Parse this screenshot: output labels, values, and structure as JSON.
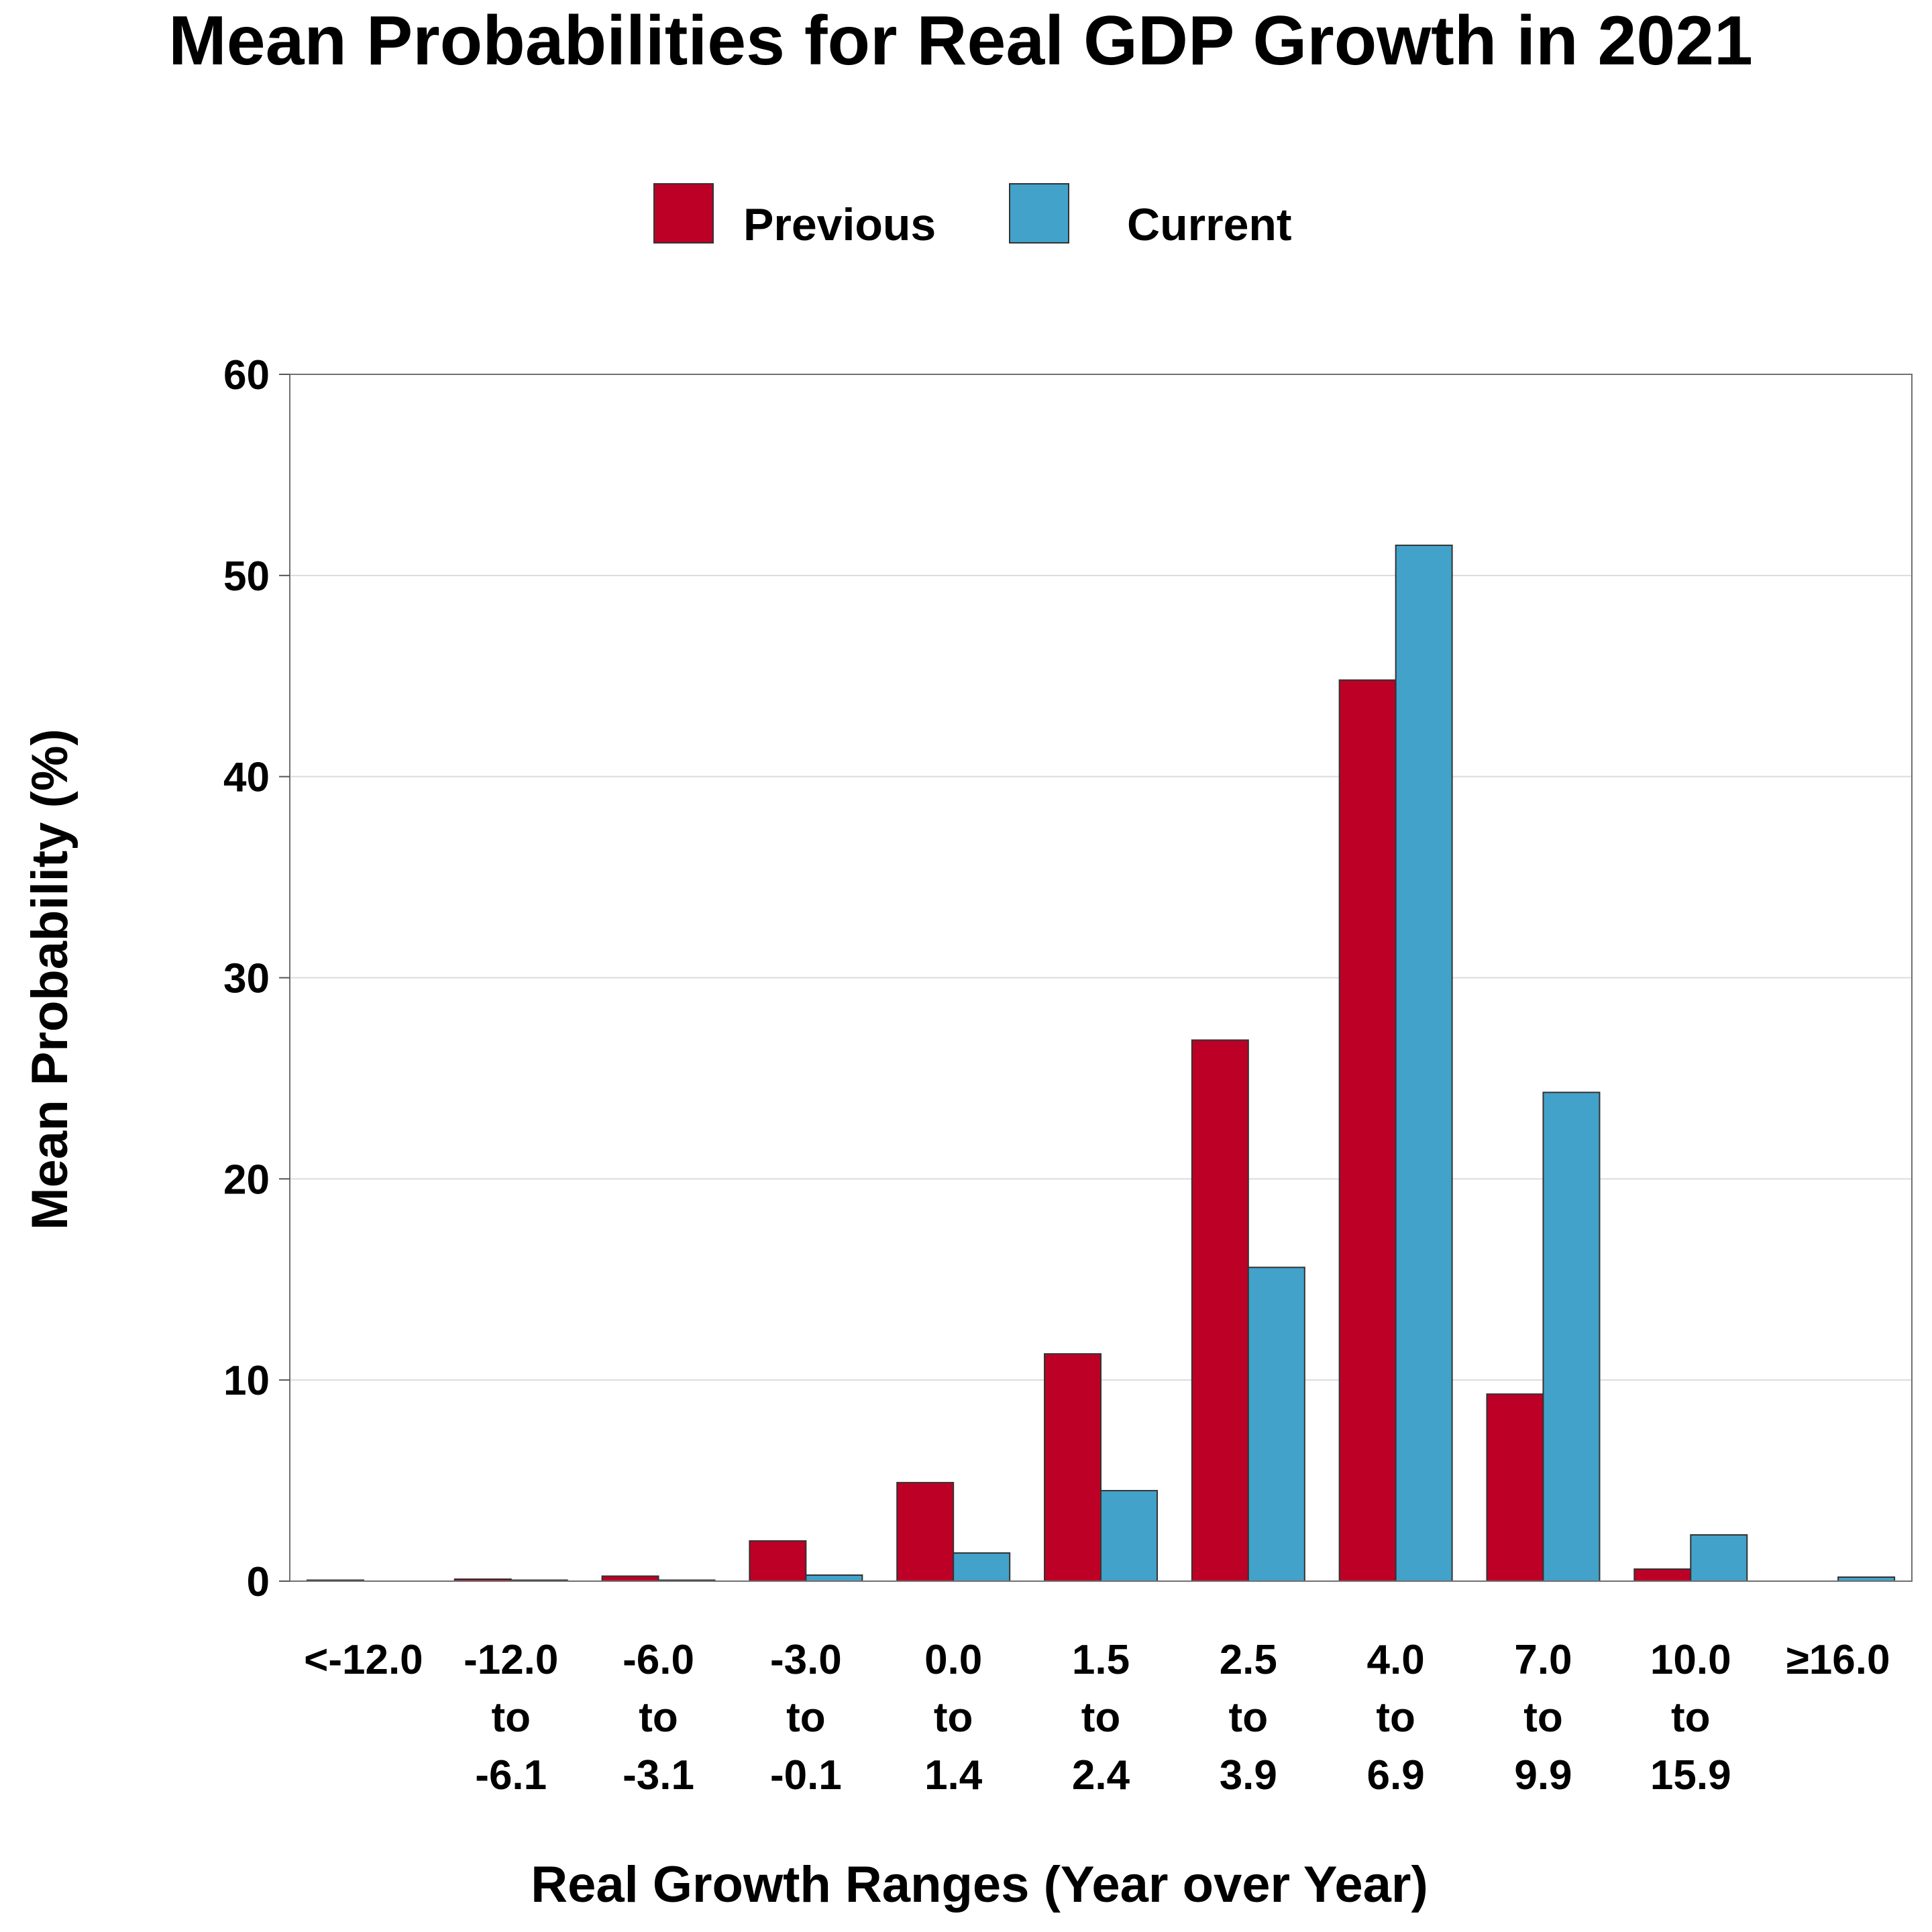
{
  "chart_data": {
    "type": "bar",
    "title": "Mean Probabilities for Real GDP Growth in 2021",
    "xlabel": "Real Growth Ranges (Year over Year)",
    "ylabel": "Mean Probability (%)",
    "ylim": [
      0,
      60
    ],
    "yticks": [
      0,
      10,
      20,
      30,
      40,
      50,
      60
    ],
    "grid": "horizontal",
    "legend_position": "top-center",
    "categories": [
      [
        "<-12.0"
      ],
      [
        "-12.0",
        "to",
        "-6.1"
      ],
      [
        "-6.0",
        "to",
        "-3.1"
      ],
      [
        "-3.0",
        "to",
        "-0.1"
      ],
      [
        "0.0",
        "to",
        "1.4"
      ],
      [
        "1.5",
        "to",
        "2.4"
      ],
      [
        "2.5",
        "to",
        "3.9"
      ],
      [
        "4.0",
        "to",
        "6.9"
      ],
      [
        "7.0",
        "to",
        "9.9"
      ],
      [
        "10.0",
        "to",
        "15.9"
      ],
      [
        "≥16.0"
      ]
    ],
    "series": [
      {
        "name": "Previous",
        "color": "#bd0026",
        "values": [
          0.05,
          0.1,
          0.25,
          2.0,
          4.9,
          11.3,
          26.9,
          44.8,
          9.3,
          0.6,
          0.0
        ]
      },
      {
        "name": "Current",
        "color": "#43a2ca",
        "values": [
          0.0,
          0.05,
          0.05,
          0.3,
          1.4,
          4.5,
          15.6,
          51.5,
          24.3,
          2.3,
          0.2
        ]
      }
    ]
  }
}
